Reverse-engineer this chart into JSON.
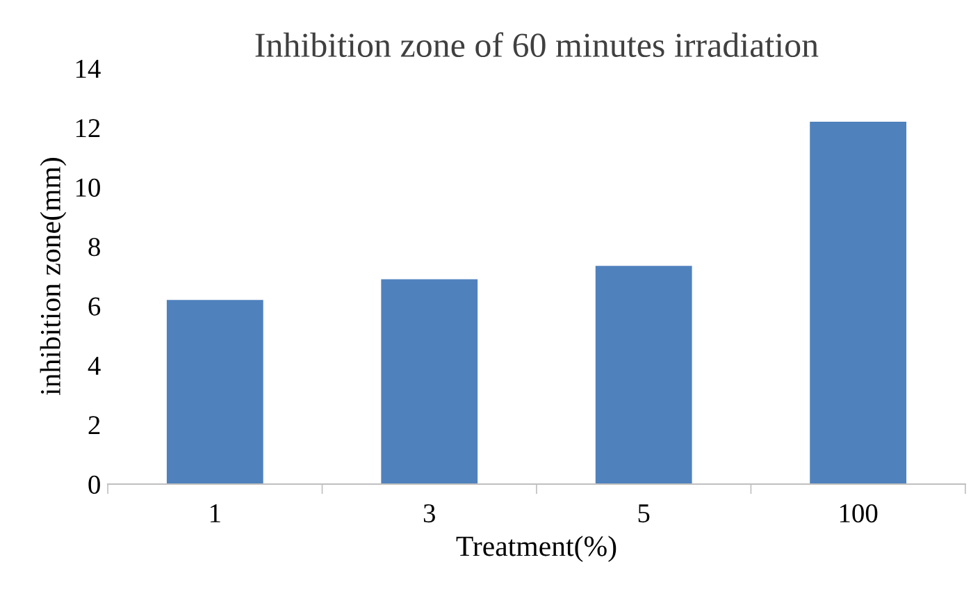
{
  "chart_data": {
    "type": "bar",
    "title": "Inhibition zone of 60 minutes irradiation",
    "xlabel": "Treatment(%)",
    "ylabel": "inhibition zone(mm)",
    "categories": [
      "1",
      "3",
      "5",
      "100"
    ],
    "values": [
      6.2,
      6.9,
      7.35,
      12.2
    ],
    "color": "#4f81bd",
    "ylim": [
      0,
      14
    ],
    "yticks": [
      0,
      2,
      4,
      6,
      8,
      10,
      12,
      14
    ],
    "grid": false,
    "legend": false
  }
}
